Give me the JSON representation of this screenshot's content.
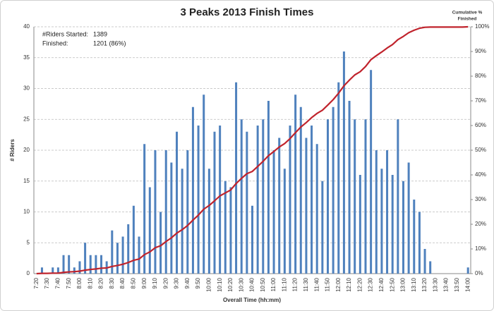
{
  "chart_data": {
    "type": "bar",
    "title": "3 Peaks 2013 Finish Times",
    "x_label": "Overall Time (hh:mm)",
    "y_label": "# Riders",
    "y2_label": [
      "Cumulative %",
      "Finished"
    ],
    "annotations": [
      {
        "label": "#Riders Started:",
        "text": "1389"
      },
      {
        "label": "Finished:",
        "text": "1201 (86%)"
      }
    ],
    "categories": [
      "7:20",
      null,
      "7:30",
      null,
      "7:40",
      null,
      "7:50",
      null,
      "8:00",
      null,
      "8:10",
      null,
      "8:20",
      null,
      "8:30",
      null,
      "8:40",
      null,
      "8:50",
      null,
      "9:00",
      null,
      "9:10",
      null,
      "9:20",
      null,
      "9:30",
      null,
      "9:40",
      null,
      "9:50",
      null,
      "10:00",
      null,
      "10:10",
      null,
      "10:20",
      null,
      "10:30",
      null,
      "10:40",
      null,
      "10:50",
      null,
      "11:00",
      null,
      "11:10",
      null,
      "11:20",
      null,
      "11:30",
      null,
      "11:40",
      null,
      "11:50",
      null,
      "12:00",
      null,
      "12:10",
      null,
      "12:20",
      null,
      "12:30",
      null,
      "12:40",
      null,
      "12:50",
      null,
      "13:00",
      null,
      "13:10",
      null,
      "13:20",
      null,
      "13:30",
      null,
      "13:40",
      null,
      "13:50",
      null,
      "14:00"
    ],
    "series": [
      {
        "color": "#4f81bd",
        "values": [
          0,
          1,
          0,
          1,
          1,
          3,
          3,
          1,
          2,
          5,
          3,
          3,
          3,
          2,
          7,
          5,
          6,
          8,
          11,
          6,
          21,
          14,
          20,
          10,
          20,
          18,
          23,
          17,
          20,
          27,
          24,
          29,
          17,
          23,
          24,
          15,
          14,
          31,
          25,
          23,
          11,
          24,
          25,
          28,
          20,
          22,
          17,
          24,
          29,
          27,
          22,
          24,
          21,
          15,
          25,
          27,
          31,
          36,
          28,
          25,
          16,
          25,
          33,
          20,
          17,
          20,
          16,
          25,
          15,
          18,
          12,
          10,
          4,
          2,
          0,
          0,
          0,
          0,
          0,
          0,
          1
        ]
      },
      {
        "color": "#c0232c",
        "axis": "y2",
        "values": [
          0,
          0.1,
          0.1,
          0.2,
          0.2,
          0.5,
          0.7,
          0.8,
          1.0,
          1.4,
          1.7,
          1.9,
          2.2,
          2.3,
          2.9,
          3.3,
          3.8,
          4.5,
          5.4,
          5.9,
          7.7,
          8.8,
          10.5,
          11.3,
          13.0,
          14.5,
          16.4,
          17.8,
          19.5,
          21.7,
          23.7,
          26.1,
          27.6,
          29.5,
          31.5,
          32.7,
          33.9,
          36.5,
          38.6,
          40.5,
          41.4,
          43.4,
          45.5,
          47.8,
          49.5,
          51.3,
          52.7,
          54.7,
          57.1,
          59.4,
          61.2,
          63.2,
          64.9,
          66.2,
          68.3,
          70.5,
          73.1,
          76.1,
          78.4,
          80.5,
          81.8,
          83.9,
          86.7,
          88.3,
          89.8,
          91.4,
          92.8,
          94.8,
          96.1,
          97.6,
          98.6,
          99.4,
          99.8,
          99.9,
          99.9,
          99.9,
          99.9,
          99.9,
          99.9,
          99.9,
          100
        ]
      }
    ],
    "ylim": [
      0,
      40
    ],
    "yticks": [
      0,
      5,
      10,
      15,
      20,
      25,
      30,
      35,
      40
    ],
    "y2lim": [
      0,
      100
    ],
    "y2ticks": [
      {
        "value": 0,
        "label": "0%"
      },
      {
        "value": 10,
        "label": "10%"
      },
      {
        "value": 20,
        "label": "20%"
      },
      {
        "value": 30,
        "label": "30%"
      },
      {
        "value": 40,
        "label": "40%"
      },
      {
        "value": 50,
        "label": "50%"
      },
      {
        "value": 60,
        "label": "60%"
      },
      {
        "value": 70,
        "label": "70%"
      },
      {
        "value": 80,
        "label": "80%"
      },
      {
        "value": 90,
        "label": "90%"
      },
      {
        "value": 100,
        "label": "100%"
      }
    ],
    "grid": true
  }
}
